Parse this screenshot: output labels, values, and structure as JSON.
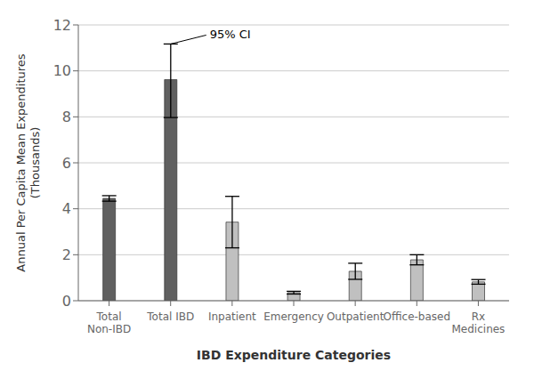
{
  "chart_data": {
    "type": "bar",
    "categories": [
      "Total\nNon-IBD",
      "Total IBD",
      "Inpatient",
      "Emergency",
      "Outpatient",
      "Office-based",
      "Rx\nMedicines"
    ],
    "values": [
      4.45,
      9.62,
      3.42,
      0.35,
      1.28,
      1.78,
      0.82
    ],
    "yerr_low": [
      0.12,
      1.65,
      1.12,
      0.06,
      0.35,
      0.22,
      0.1
    ],
    "yerr_high": [
      0.12,
      1.55,
      1.12,
      0.06,
      0.35,
      0.22,
      0.1
    ],
    "colors": [
      "#606060",
      "#606060",
      "#c0c0c0",
      "#c0c0c0",
      "#c0c0c0",
      "#c0c0c0",
      "#c0c0c0"
    ],
    "ylim": [
      0,
      12
    ],
    "yticks": [
      0,
      2,
      4,
      6,
      8,
      10,
      12
    ],
    "xlabel": "IBD Expenditure Categories",
    "ylabel": "Annual Per Capita Mean Expenditures\n(Thousands)",
    "annotations": [
      {
        "text": "95% CI",
        "category": "Total IBD"
      }
    ],
    "grid": true
  }
}
